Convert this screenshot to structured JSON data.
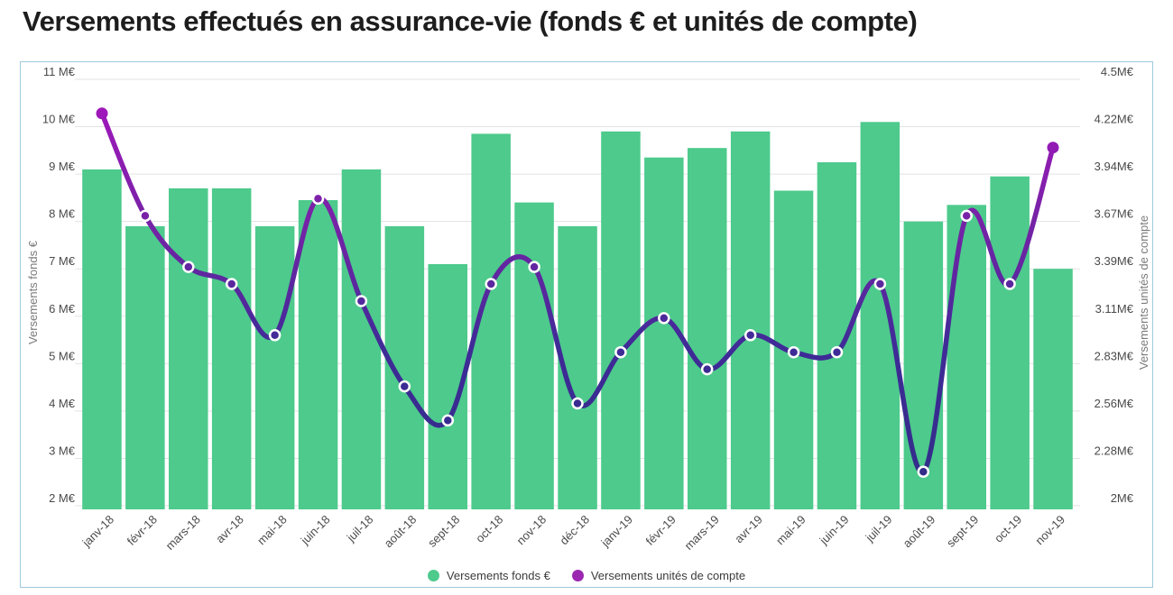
{
  "title": "Versements effectués en assurance-vie (fonds € et unités de compte)",
  "chart_data": {
    "type": "combo",
    "categories": [
      "janv-18",
      "févr-18",
      "mars-18",
      "avr-18",
      "mai-18",
      "juin-18",
      "juil-18",
      "août-18",
      "sept-18",
      "oct-18",
      "nov-18",
      "déc-18",
      "janv-19",
      "févr-19",
      "mars-19",
      "avr-19",
      "mai-19",
      "juin-19",
      "juil-19",
      "août-19",
      "sept-19",
      "oct-19",
      "nov-19"
    ],
    "series": [
      {
        "name": "Versements fonds €",
        "type": "bar",
        "axis": "left",
        "unit": "M€",
        "color": "#4DCA8C",
        "values": [
          9.1,
          7.9,
          8.7,
          8.7,
          7.9,
          8.45,
          9.1,
          7.9,
          7.1,
          9.85,
          8.4,
          7.9,
          9.9,
          9.35,
          9.55,
          9.9,
          8.65,
          9.25,
          10.1,
          8.0,
          8.35,
          8.95,
          7.0
        ]
      },
      {
        "name": "Versements unités de compte",
        "type": "line",
        "axis": "right",
        "unit": "M€",
        "color_top": "#A316BC",
        "color_bottom": "#2F2C86",
        "values": [
          4.3,
          3.7,
          3.4,
          3.3,
          3.0,
          3.8,
          3.2,
          2.7,
          2.5,
          3.3,
          3.4,
          2.6,
          2.9,
          3.1,
          2.8,
          3.0,
          2.9,
          2.9,
          3.3,
          2.2,
          3.7,
          3.3,
          4.1
        ]
      }
    ],
    "left_axis": {
      "title": "Versements fonds €",
      "min": 2,
      "max": 11,
      "ticks": [
        "11 M€",
        "10 M€",
        "9 M€",
        "8 M€",
        "7 M€",
        "6 M€",
        "5 M€",
        "4 M€",
        "3 M€",
        "2 M€"
      ]
    },
    "right_axis": {
      "title": "Versements unités de compte",
      "min": 2,
      "max": 4.5,
      "ticks": [
        "4.5M€",
        "4.22M€",
        "3.94M€",
        "3.67M€",
        "3.39M€",
        "3.11M€",
        "2.83M€",
        "2.56M€",
        "2.28M€",
        "2M€"
      ]
    },
    "grid": true,
    "legend_position": "bottom"
  },
  "legend": {
    "items": [
      {
        "label": "Versements fonds €",
        "color": "#4DCA8C"
      },
      {
        "label": "Versements unités de compte",
        "color": "#9c27b0"
      }
    ]
  }
}
